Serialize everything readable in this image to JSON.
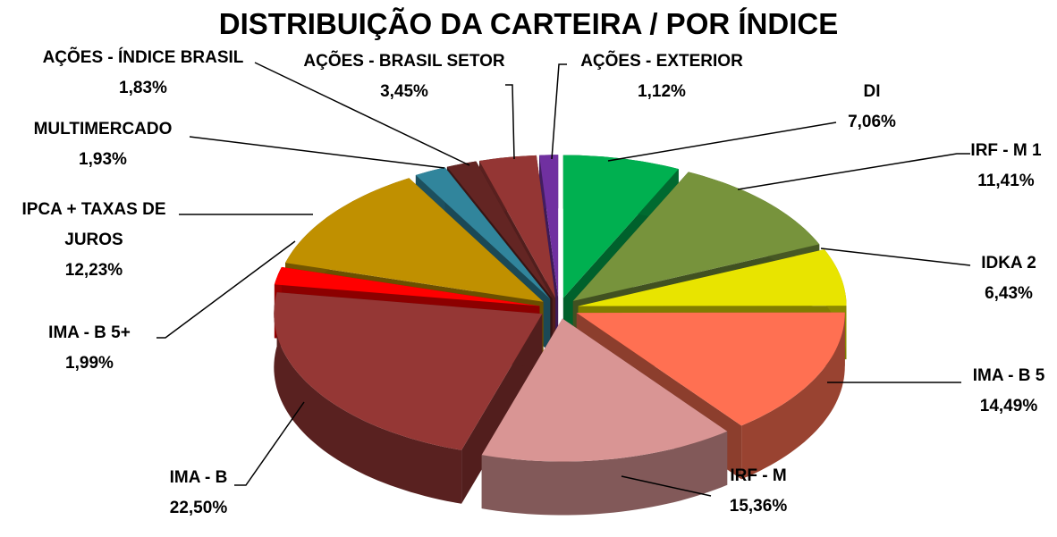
{
  "chart_data": {
    "type": "pie",
    "title": "DISTRIBUIÇÃO DA CARTEIRA / POR ÍNDICE",
    "categories": [
      "DI",
      "IRF - M 1",
      "IDKA 2",
      "IMA - B 5",
      "IRF - M",
      "IMA - B",
      "IMA - B 5+",
      "IPCA + TAXAS DE JUROS",
      "MULTIMERCADO",
      "AÇÕES - ÍNDICE BRASIL",
      "AÇÕES - BRASIL SETOR",
      "AÇÕES - EXTERIOR"
    ],
    "values": [
      7.06,
      11.41,
      6.43,
      14.49,
      15.36,
      22.5,
      1.99,
      12.23,
      1.93,
      1.83,
      3.45,
      1.12
    ],
    "value_labels": [
      "7,06%",
      "11,41%",
      "6,43%",
      "14,49%",
      "15,36%",
      "22,50%",
      "1,99%",
      "12,23%",
      "1,93%",
      "1,83%",
      "3,45%",
      "1,12%"
    ],
    "colors": [
      "#00b050",
      "#77933c",
      "#e8e400",
      "#ff7052",
      "#d99594",
      "#953735",
      "#ff0000",
      "#c09000",
      "#31859c",
      "#632523",
      "#943634",
      "#7030a0"
    ]
  }
}
